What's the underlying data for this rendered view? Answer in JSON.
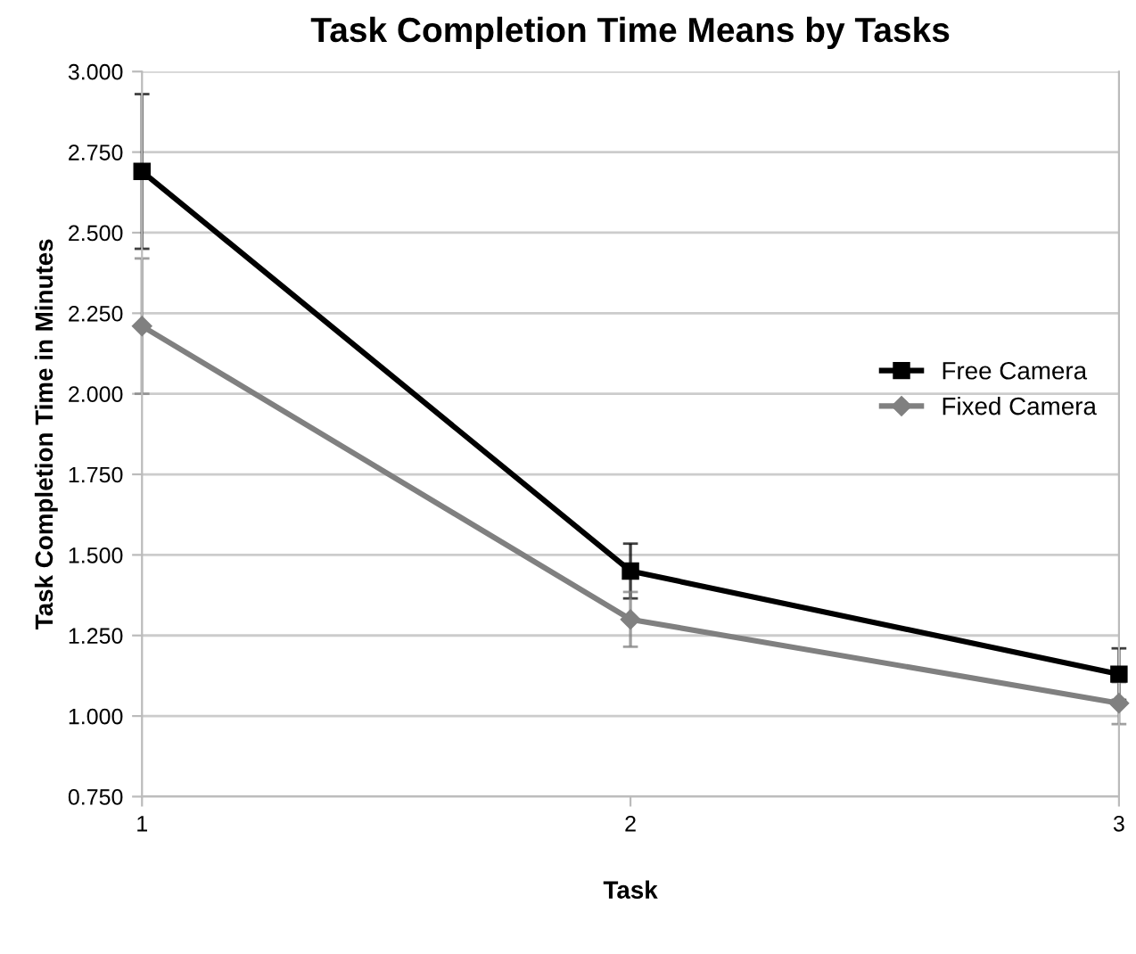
{
  "chart_data": {
    "type": "line",
    "title": "Task Completion Time Means by Tasks",
    "xlabel": "Task",
    "ylabel": "Task Completion Time in Minutes",
    "x": [
      1,
      2,
      3
    ],
    "series": [
      {
        "name": "Free Camera",
        "color": "#000000",
        "marker": "square",
        "values": [
          2.69,
          1.45,
          1.13
        ],
        "errors": [
          0.24,
          0.085,
          0.08
        ]
      },
      {
        "name": "Fixed Camera",
        "color": "#808080",
        "marker": "diamond",
        "values": [
          2.21,
          1.3,
          1.04
        ],
        "errors": [
          0.21,
          0.085,
          0.065
        ]
      }
    ],
    "xlim": [
      1,
      3
    ],
    "xticks": [
      1,
      2,
      3
    ],
    "ylim": [
      0.75,
      3.0
    ],
    "yticks": [
      {
        "value": 0.75,
        "label": "0.750"
      },
      {
        "value": 1.0,
        "label": "1.000"
      },
      {
        "value": 1.25,
        "label": "1.250"
      },
      {
        "value": 1.5,
        "label": "1.500"
      },
      {
        "value": 1.75,
        "label": "1.750"
      },
      {
        "value": 2.0,
        "label": "2.000"
      },
      {
        "value": 2.25,
        "label": "2.250"
      },
      {
        "value": 2.5,
        "label": "2.500"
      },
      {
        "value": 2.75,
        "label": "2.750"
      },
      {
        "value": 3.0,
        "label": "3.000"
      }
    ],
    "grid": "y",
    "legend": "right",
    "line_style": "solid"
  }
}
